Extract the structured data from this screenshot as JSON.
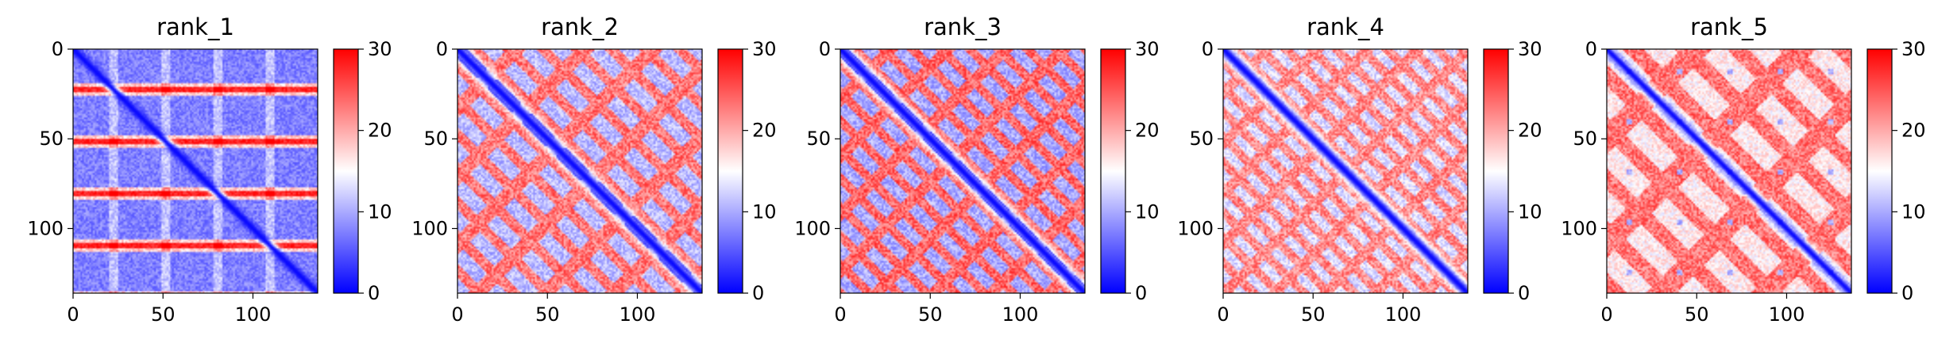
{
  "chart_data": [
    {
      "type": "heatmap",
      "title": "rank_1",
      "xlim": [
        0,
        136
      ],
      "ylim": [
        136,
        0
      ],
      "x_ticks": [
        0,
        50,
        100
      ],
      "y_ticks": [
        0,
        50,
        100
      ],
      "x_tick_labels": [
        "0",
        "50",
        "100"
      ],
      "y_tick_labels": [
        "0",
        "50",
        "100"
      ],
      "colorbar": {
        "min": 0,
        "max": 30,
        "ticks": [
          0,
          10,
          20,
          30
        ],
        "tick_labels": [
          "0",
          "10",
          "20",
          "30"
        ],
        "colormap": "bwr"
      },
      "pattern": {
        "baseline": 5,
        "diagonal_width": 2.5,
        "period": 29,
        "phase": 22,
        "hot_band_value": 26,
        "mid_band_value": 15
      }
    },
    {
      "type": "heatmap",
      "title": "rank_2",
      "xlim": [
        0,
        136
      ],
      "ylim": [
        136,
        0
      ],
      "x_ticks": [
        0,
        50,
        100
      ],
      "y_ticks": [
        0,
        50,
        100
      ],
      "x_tick_labels": [
        "0",
        "50",
        "100"
      ],
      "y_tick_labels": [
        "0",
        "50",
        "100"
      ],
      "colorbar": {
        "min": 0,
        "max": 30,
        "ticks": [
          0,
          10,
          20,
          30
        ],
        "tick_labels": [
          "0",
          "10",
          "20",
          "30"
        ],
        "colormap": "bwr"
      },
      "pattern": {
        "baseline": 22,
        "diagonal_width": 4,
        "period": 19,
        "blob_value": 8
      }
    },
    {
      "type": "heatmap",
      "title": "rank_3",
      "xlim": [
        0,
        136
      ],
      "ylim": [
        136,
        0
      ],
      "x_ticks": [
        0,
        50,
        100
      ],
      "y_ticks": [
        0,
        50,
        100
      ],
      "x_tick_labels": [
        "0",
        "50",
        "100"
      ],
      "y_tick_labels": [
        "0",
        "50",
        "100"
      ],
      "colorbar": {
        "min": 0,
        "max": 30,
        "ticks": [
          0,
          10,
          20,
          30
        ],
        "tick_labels": [
          "0",
          "10",
          "20",
          "30"
        ],
        "colormap": "bwr"
      },
      "pattern": {
        "baseline": 23,
        "diagonal_width": 4,
        "period": 16,
        "blob_value": 7
      }
    },
    {
      "type": "heatmap",
      "title": "rank_4",
      "xlim": [
        0,
        136
      ],
      "ylim": [
        136,
        0
      ],
      "x_ticks": [
        0,
        50,
        100
      ],
      "y_ticks": [
        0,
        50,
        100
      ],
      "x_tick_labels": [
        "0",
        "50",
        "100"
      ],
      "y_tick_labels": [
        "0",
        "50",
        "100"
      ],
      "colorbar": {
        "min": 0,
        "max": 30,
        "ticks": [
          0,
          10,
          20,
          30
        ],
        "tick_labels": [
          "0",
          "10",
          "20",
          "30"
        ],
        "colormap": "bwr"
      },
      "pattern": {
        "baseline": 21,
        "diagonal_width": 3.5,
        "period": 14,
        "blob_value": 10
      }
    },
    {
      "type": "heatmap",
      "title": "rank_5",
      "xlim": [
        0,
        136
      ],
      "ylim": [
        136,
        0
      ],
      "x_ticks": [
        0,
        50,
        100
      ],
      "y_ticks": [
        0,
        50,
        100
      ],
      "x_tick_labels": [
        "0",
        "50",
        "100"
      ],
      "y_tick_labels": [
        "0",
        "50",
        "100"
      ],
      "colorbar": {
        "min": 0,
        "max": 30,
        "ticks": [
          0,
          10,
          20,
          30
        ],
        "tick_labels": [
          "0",
          "10",
          "20",
          "30"
        ],
        "colormap": "bwr"
      },
      "pattern": {
        "baseline": 22,
        "diagonal_width": 3,
        "period": 29,
        "blob_value": 13
      }
    }
  ]
}
